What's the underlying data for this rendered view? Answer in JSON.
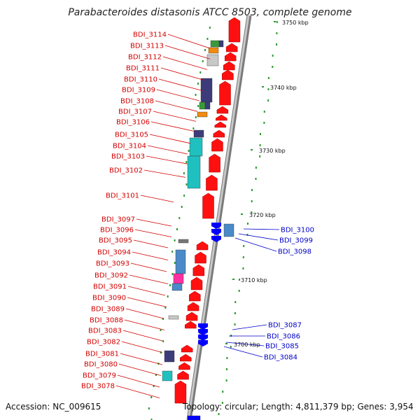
{
  "title": "Parabacteroides distasonis ATCC 8503, complete genome",
  "footer": {
    "accession": "Accession: NC_009615",
    "summary": "Topology: circular; Length: 4,811,379 bp; Genes: 3,954"
  },
  "colors": {
    "forward_cds": "#ff0000",
    "reverse_cds": "#0000ff",
    "label_left": "#d40000",
    "label_right": "#0000c8",
    "backbone": "#9a9a9a",
    "gc_ticks": "#2a9a2a"
  },
  "kbp_marks": [
    {
      "label": "3750 kbp"
    },
    {
      "label": "3740 kbp"
    },
    {
      "label": "3730 kbp"
    },
    {
      "label": "3720 kbp"
    },
    {
      "label": "3710 kbp"
    },
    {
      "label": "3700 kbp"
    }
  ],
  "genes_left": [
    "BDI_3114",
    "BDI_3113",
    "BDI_3112",
    "BDI_3111",
    "BDI_3110",
    "BDI_3109",
    "BDI_3108",
    "BDI_3107",
    "BDI_3106",
    "BDI_3105",
    "BDI_3104",
    "BDI_3103",
    "BDI_3102",
    "BDI_3101",
    "BDI_3097",
    "BDI_3096",
    "BDI_3095",
    "BDI_3094",
    "BDI_3093",
    "BDI_3092",
    "BDI_3091",
    "BDI_3090",
    "BDI_3089",
    "BDI_3088",
    "BDI_3083",
    "BDI_3082",
    "BDI_3081",
    "BDI_3080",
    "BDI_3079",
    "BDI_3078"
  ],
  "genes_right": [
    "BDI_3100",
    "BDI_3099",
    "BDI_3098",
    "BDI_3087",
    "BDI_3086",
    "BDI_3085",
    "BDI_3084"
  ]
}
